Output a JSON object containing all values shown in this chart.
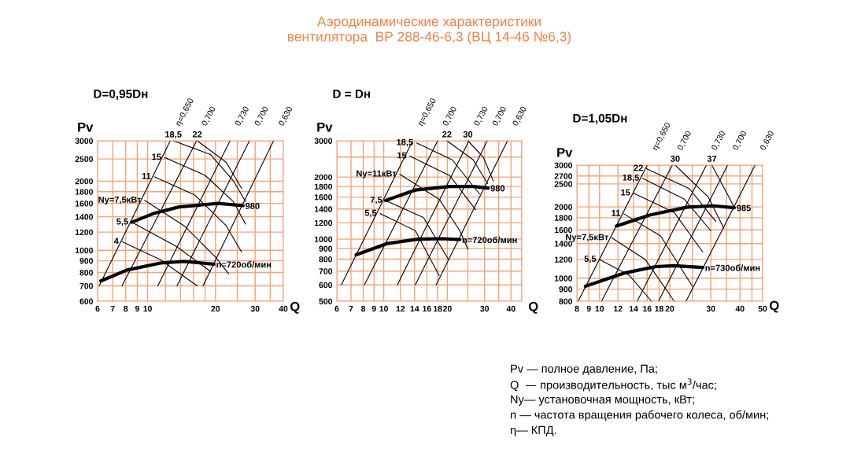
{
  "chart_data": [
    {
      "type": "line",
      "subtitle": "D=0,95Dн",
      "xlabel": "Q",
      "ylabel": "Pv",
      "log": "xy",
      "grid": true,
      "xlim": [
        6,
        40
      ],
      "ylim": [
        600,
        3000
      ],
      "xticks": [
        6,
        7,
        8,
        9,
        10,
        {
          "value": 12,
          "label": null
        },
        {
          "value": 14,
          "label": null
        },
        {
          "value": 16,
          "label": null
        },
        {
          "value": 18,
          "label": null
        },
        20,
        {
          "value": 25,
          "label": null
        },
        30,
        {
          "value": 35,
          "label": null
        },
        40
      ],
      "yticks": [
        600,
        700,
        800,
        900,
        1000,
        1200,
        1400,
        1600,
        1800,
        2000,
        2500,
        3000
      ],
      "series": [
        {
          "name": "980",
          "color": "#000000",
          "x": [
            8.5,
            10.6,
            13.8,
            20.5,
            26.5
          ],
          "values": [
            1325,
            1445,
            1545,
            1600,
            1565
          ]
        },
        {
          "name": "n=720об/мин",
          "color": "#000000",
          "x": [
            6.2,
            8.1,
            11.4,
            14.5,
            19.7
          ],
          "values": [
            735,
            820,
            880,
            895,
            870
          ]
        },
        {
          "name": "η=0,650",
          "color": "#000000",
          "x": [
            6.1,
            12.6
          ],
          "values": [
            700,
            3000
          ]
        },
        {
          "name": "0,700",
          "color": "#000000",
          "x": [
            7.7,
            16.5
          ],
          "values": [
            700,
            3000
          ]
        },
        {
          "name": "0,730",
          "color": "#000000",
          "x": [
            11.1,
            23.2
          ],
          "values": [
            700,
            3000
          ]
        },
        {
          "name": "0,700",
          "color": "#000000",
          "x": [
            13.5,
            28.3
          ],
          "values": [
            700,
            3000
          ]
        },
        {
          "name": "0,630",
          "color": "#000000",
          "x": [
            17.6,
            36.2
          ],
          "values": [
            700,
            3000
          ]
        },
        {
          "name": "4",
          "color": "#000000",
          "x": [
            7.7,
            11.4,
            16.6
          ],
          "values": [
            1090,
            910,
            700
          ]
        },
        {
          "name": "5,5",
          "color": "#000000",
          "x": [
            8.5,
            13.4,
            19.0
          ],
          "values": [
            1325,
            1040,
            810
          ]
        },
        {
          "name": "Ny=7,5кВт",
          "color": "#000000",
          "x": [
            9.7,
            14.5,
            20.0,
            22.9
          ],
          "values": [
            1650,
            1280,
            935,
            790
          ]
        },
        {
          "name": "11",
          "color": "#000000",
          "x": [
            10.7,
            16.2,
            22.3,
            26.1
          ],
          "values": [
            2090,
            1740,
            1280,
            985
          ]
        },
        {
          "name": "15",
          "color": "#000000",
          "x": [
            11.9,
            18.0,
            24.0,
            27.2
          ],
          "values": [
            2535,
            2120,
            1630,
            1300
          ]
        },
        {
          "name": "18,5",
          "color": "#000000",
          "x": [
            13.0,
            19.0,
            24.0,
            27.2
          ],
          "values": [
            3000,
            2615,
            2010,
            1630
          ]
        },
        {
          "name": "22",
          "color": "#000000",
          "x": [
            16.6,
            22.3,
            26.1
          ],
          "values": [
            3000,
            2420,
            1860
          ]
        }
      ]
    },
    {
      "type": "line",
      "title": "Аэродинамические характеристики\nвентилятора  ВР 288-46-6,3 (ВЦ 14-46 №6,3)",
      "subtitle": "D = Dн",
      "xlabel": "Q",
      "ylabel": "Pv",
      "log": "xy",
      "grid": true,
      "xlim": [
        6,
        45
      ],
      "ylim": [
        500,
        3000
      ],
      "xticks": [
        6,
        7,
        8,
        9,
        10,
        12,
        14,
        16,
        18,
        20,
        {
          "value": 25,
          "label": null
        },
        30,
        {
          "value": 35,
          "label": null
        },
        40,
        {
          "value": 45,
          "label": null
        }
      ],
      "yticks": [
        500,
        600,
        700,
        800,
        900,
        1000,
        1200,
        1400,
        1600,
        1800,
        2000,
        {
          "value": 2500,
          "label": null
        },
        3000
      ],
      "series": [
        {
          "name": "980",
          "color": "#000000",
          "x": [
            10.2,
            14.1,
            20.5,
            26.5,
            31.2
          ],
          "values": [
            1540,
            1730,
            1800,
            1800,
            1770
          ]
        },
        {
          "name": "n=720об/мин",
          "color": "#000000",
          "x": [
            7.4,
            10.3,
            14.5,
            18.8,
            22.9
          ],
          "values": [
            840,
            950,
            1000,
            1005,
            995
          ]
        },
        {
          "name": "η=0,650",
          "color": "#000000",
          "x": [
            6.3,
            13.7
          ],
          "values": [
            600,
            3000
          ]
        },
        {
          "name": "0,700",
          "color": "#000000",
          "x": [
            8.1,
            18.0
          ],
          "values": [
            600,
            3000
          ]
        },
        {
          "name": "0,730",
          "color": "#000000",
          "x": [
            11.6,
            25.3
          ],
          "values": [
            600,
            3000
          ]
        },
        {
          "name": "0,700",
          "color": "#000000",
          "x": [
            14.1,
            30.9
          ],
          "values": [
            600,
            3000
          ]
        },
        {
          "name": "0,630",
          "color": "#000000",
          "x": [
            17.7,
            38.5
          ],
          "values": [
            600,
            3000
          ]
        },
        {
          "name": "5,5",
          "color": "#000000",
          "x": [
            9.6,
            14.1,
            18.3
          ],
          "values": [
            1330,
            1100,
            665
          ]
        },
        {
          "name": "7,5",
          "color": "#000000",
          "x": [
            10.2,
            15.4,
            20.2
          ],
          "values": [
            1540,
            1275,
            800
          ]
        },
        {
          "name": "Ny=11кВт",
          "color": "#000000",
          "x": [
            11.9,
            18.3,
            22.9,
            25.0
          ],
          "values": [
            2065,
            1560,
            1100,
            895
          ]
        },
        {
          "name": "15",
          "color": "#000000",
          "x": [
            13.3,
            20.5,
            27.2
          ],
          "values": [
            2530,
            2035,
            1390
          ]
        },
        {
          "name": "18,5",
          "color": "#000000",
          "x": [
            14.3,
            21.1,
            28.4
          ],
          "values": [
            2930,
            2425,
            1655
          ]
        },
        {
          "name": "22",
          "color": "#000000",
          "x": [
            19.9,
            26.5,
            31.0
          ],
          "values": [
            3000,
            2425,
            1860
          ]
        },
        {
          "name": "30",
          "color": "#000000",
          "x": [
            25.0,
            29.6,
            33.0
          ],
          "values": [
            3000,
            2495,
            1915
          ]
        }
      ]
    },
    {
      "type": "line",
      "subtitle": "D=1,05Dн",
      "xlabel": "Q",
      "ylabel": "Pv",
      "log": "xy",
      "grid": true,
      "xlim": [
        8,
        50
      ],
      "ylim": [
        800,
        3000
      ],
      "xticks": [
        8,
        9,
        10,
        12,
        14,
        16,
        18,
        20,
        {
          "value": 25,
          "label": null
        },
        30,
        {
          "value": 35,
          "label": null
        },
        40,
        {
          "value": 45,
          "label": null
        },
        50
      ],
      "yticks": [
        800,
        900,
        1000,
        1200,
        1400,
        1600,
        1800,
        2000,
        2500,
        2700,
        3000
      ],
      "annotations": [
        "Pv — полное давление, Па;",
        "Q  — производительность, тыс м$^{3}$/час;",
        "Ny— установочная мощность, кВт;",
        "n — частота вращения рабочего колеса, об/мин;",
        "η— КПД."
      ],
      "series": [
        {
          "name": "985",
          "color": "#000000",
          "x": [
            11.8,
            16.5,
            23.8,
            30.7,
            37.8
          ],
          "values": [
            1660,
            1850,
            1995,
            2020,
            1985
          ]
        },
        {
          "name": "n=730об/мин",
          "color": "#000000",
          "x": [
            8.7,
            12.7,
            17.4,
            20.9,
            27.7
          ],
          "values": [
            925,
            1050,
            1120,
            1130,
            1110
          ]
        },
        {
          "name": "η=0,650",
          "color": "#000000",
          "x": [
            8.1,
            16.0
          ],
          "values": [
            800,
            3000
          ]
        },
        {
          "name": "0,700",
          "color": "#000000",
          "x": [
            10.2,
            20.5
          ],
          "values": [
            800,
            3000
          ]
        },
        {
          "name": "0,730",
          "color": "#000000",
          "x": [
            14.5,
            28.7
          ],
          "values": [
            800,
            3000
          ]
        },
        {
          "name": "0,700",
          "color": "#000000",
          "x": [
            17.9,
            35.4
          ],
          "values": [
            800,
            3000
          ]
        },
        {
          "name": "0,630",
          "color": "#000000",
          "x": [
            23.5,
            46.4
          ],
          "values": [
            800,
            3000
          ]
        },
        {
          "name": "5,5",
          "color": "#000000",
          "x": [
            10.0,
            13.4,
            16.7
          ],
          "values": [
            1200,
            1030,
            800
          ]
        },
        {
          "name": "Ny=7,5кВт",
          "color": "#000000",
          "x": [
            11.3,
            15.7,
            20.9
          ],
          "values": [
            1480,
            1200,
            800
          ]
        },
        {
          "name": "11",
          "color": "#000000",
          "x": [
            12.7,
            18.3,
            25.0
          ],
          "values": [
            1870,
            1505,
            925
          ]
        },
        {
          "name": "15",
          "color": "#000000",
          "x": [
            14.0,
            20.9,
            27.7
          ],
          "values": [
            2285,
            1895,
            1290
          ]
        },
        {
          "name": "18,5",
          "color": "#000000",
          "x": [
            15.3,
            23.1,
            30.0
          ],
          "values": [
            2640,
            2155,
            1585
          ]
        },
        {
          "name": "22",
          "color": "#000000",
          "x": [
            15.9,
            24.3,
            31.5
          ],
          "values": [
            2900,
            2385,
            1735
          ]
        },
        {
          "name": "30",
          "color": "#000000",
          "x": [
            21.1,
            29.2,
            34.1
          ],
          "values": [
            3000,
            2205,
            1625
          ]
        },
        {
          "name": "37",
          "color": "#000000",
          "x": [
            30.3,
            37.8
          ],
          "values": [
            3000,
            1995
          ]
        }
      ]
    }
  ]
}
